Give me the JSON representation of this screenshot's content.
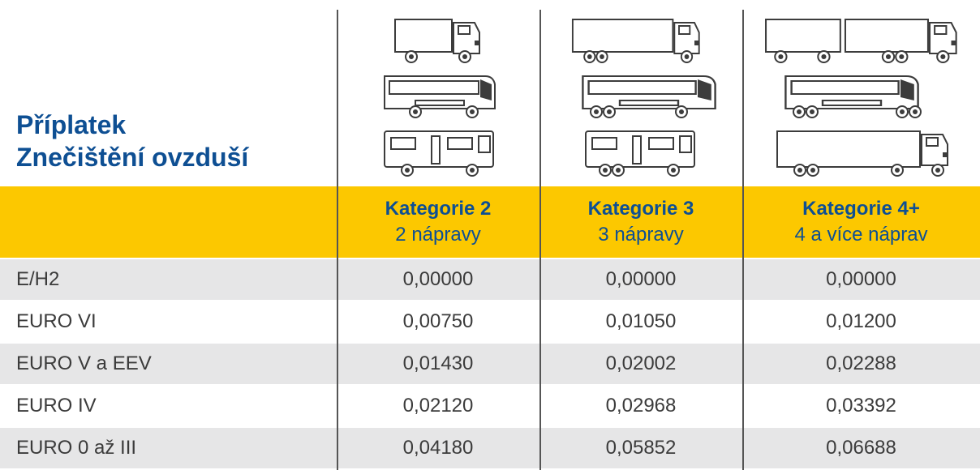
{
  "header": {
    "title_lines": [
      "Příplatek",
      "Znečištění ovzduší"
    ]
  },
  "columns": [
    {
      "name": "Kategorie 2",
      "axles": "2 nápravy"
    },
    {
      "name": "Kategorie 3",
      "axles": "3 nápravy"
    },
    {
      "name": "Kategorie 4+",
      "axles": "4 a více náprav"
    }
  ],
  "rows": [
    {
      "label": "E/H2",
      "values": [
        "0,00000",
        "0,00000",
        "0,00000"
      ]
    },
    {
      "label": "EURO VI",
      "values": [
        "0,00750",
        "0,01050",
        "0,01200"
      ]
    },
    {
      "label": "EURO V a EEV",
      "values": [
        "0,01430",
        "0,02002",
        "0,02288"
      ]
    },
    {
      "label": "EURO IV",
      "values": [
        "0,02120",
        "0,02968",
        "0,03392"
      ]
    },
    {
      "label": "EURO 0 až III",
      "values": [
        "0,04180",
        "0,05852",
        "0,06688"
      ]
    }
  ]
}
